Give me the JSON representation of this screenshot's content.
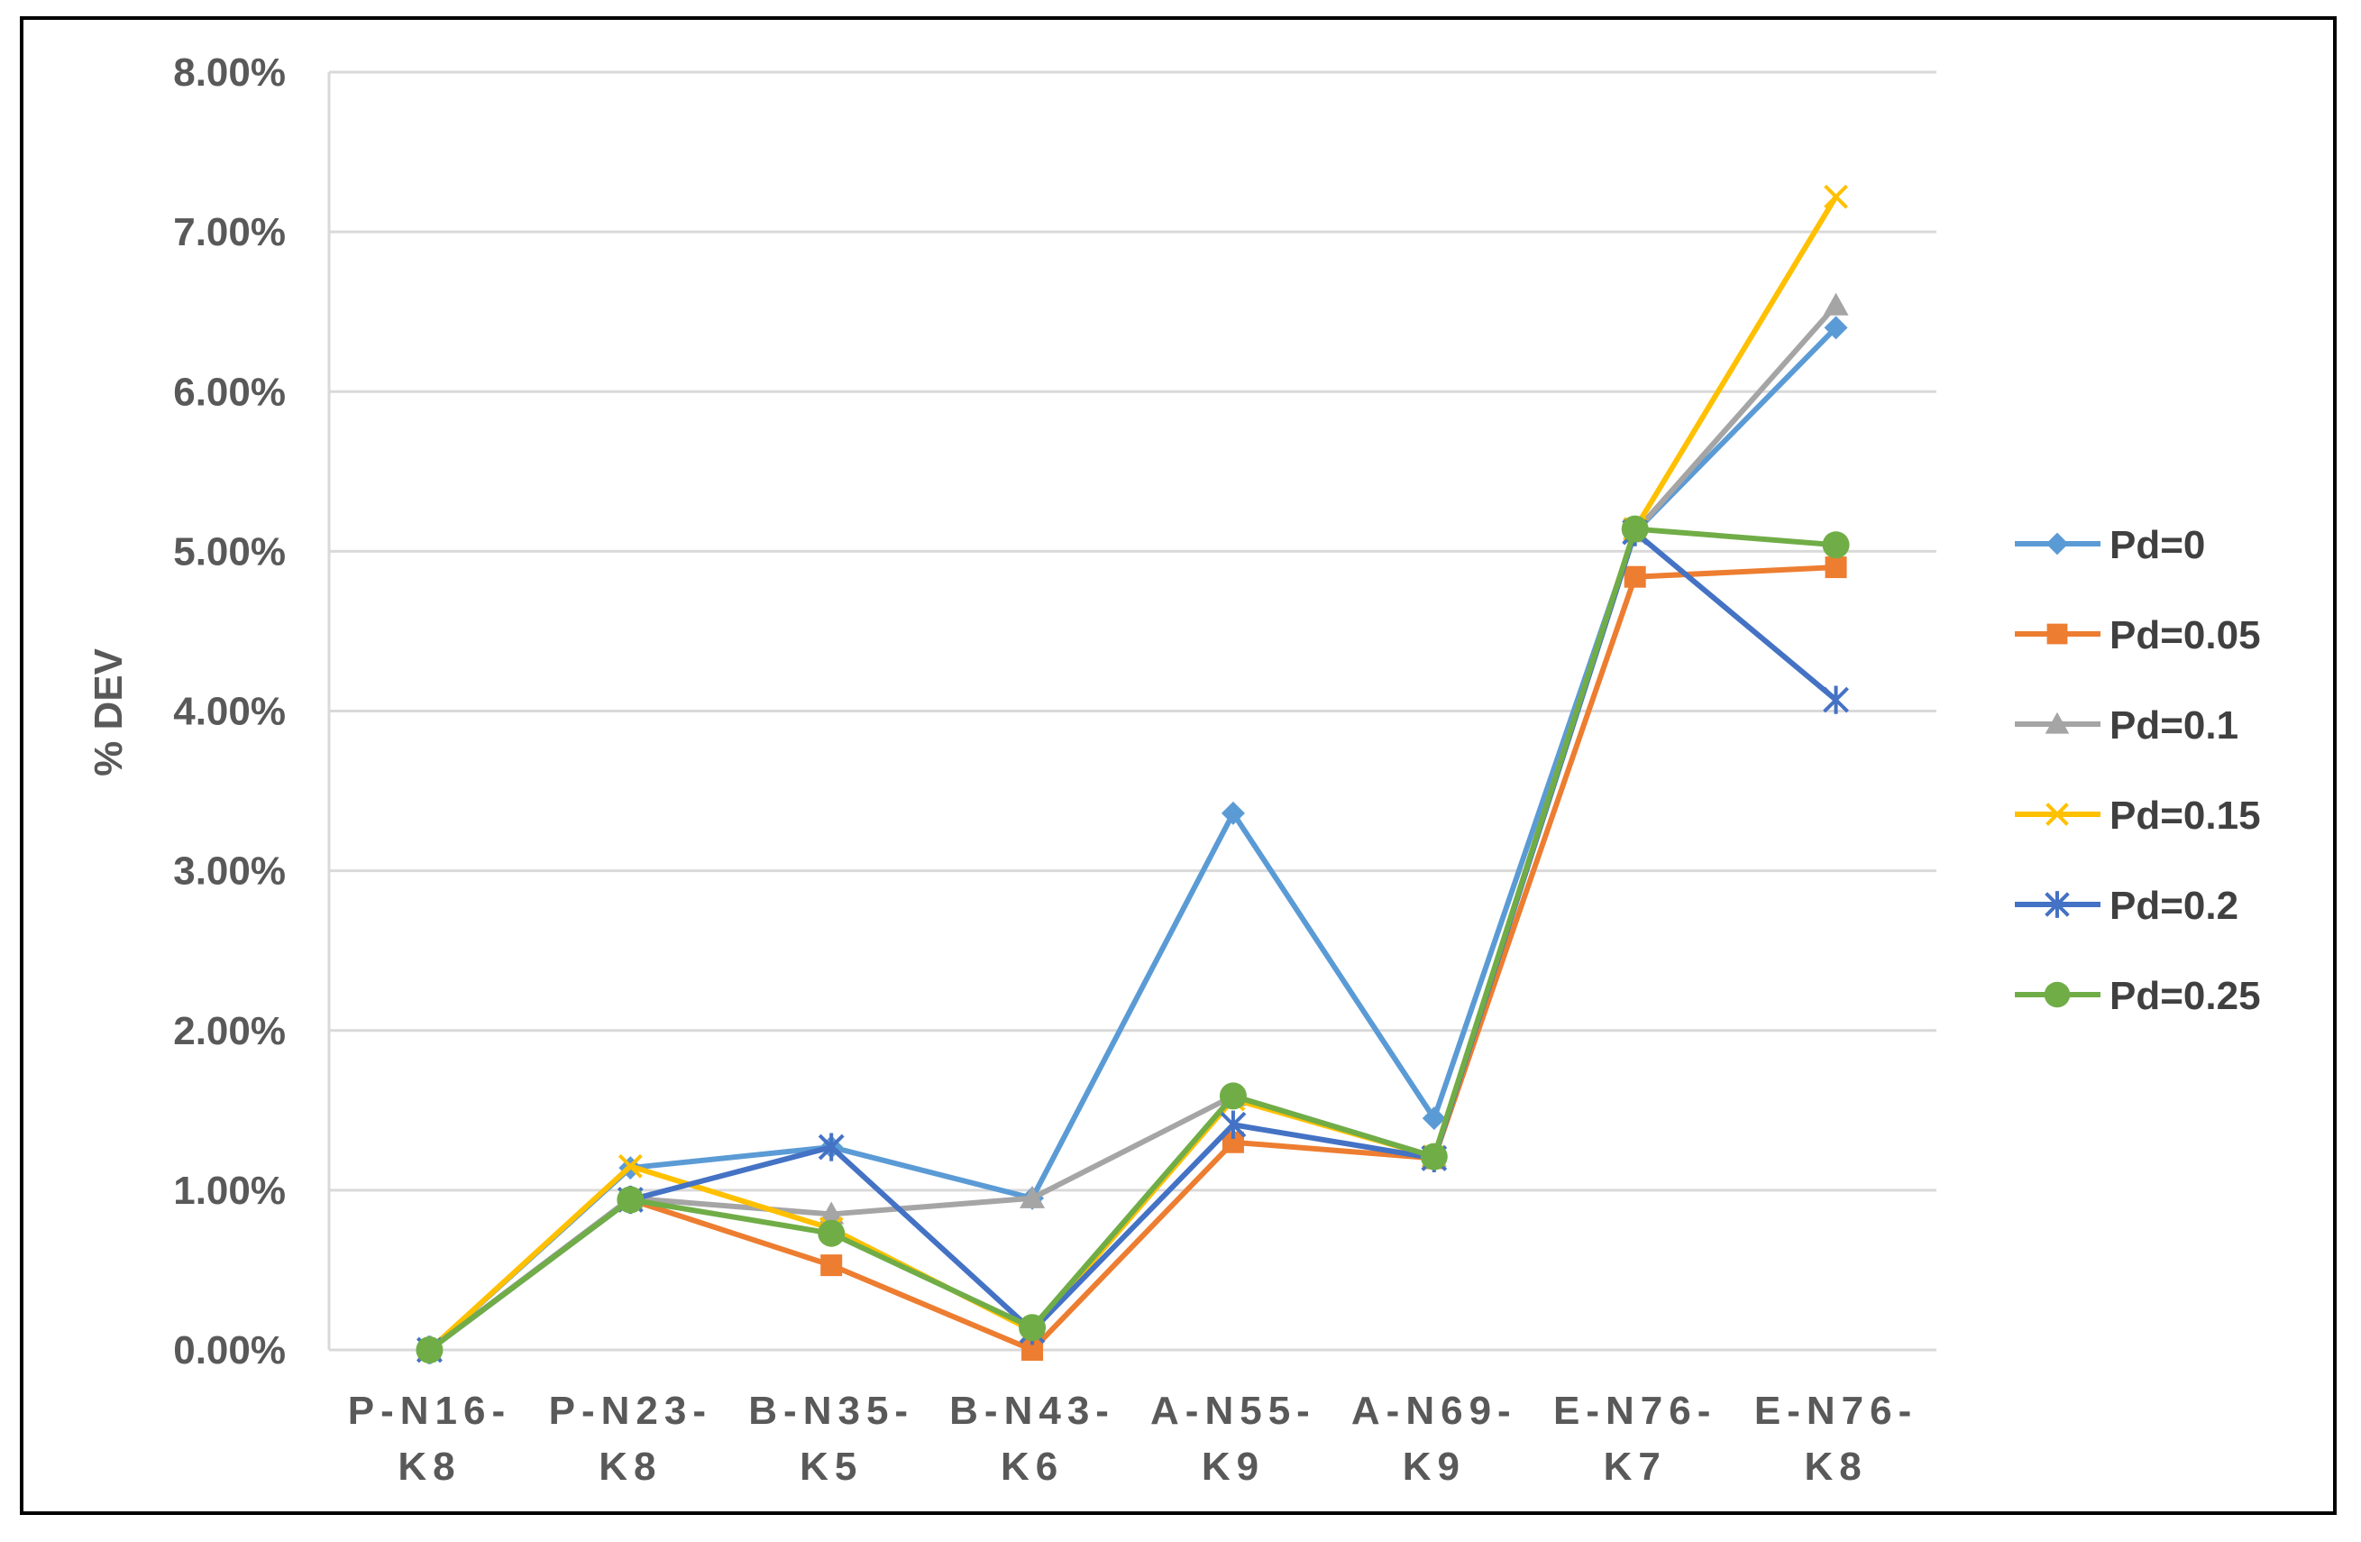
{
  "chart_data": {
    "type": "line",
    "title": "",
    "xlabel": "",
    "ylabel": "% DEV",
    "ylim": [
      0,
      0.08
    ],
    "ytick_step": 0.01,
    "y_tick_labels": [
      "0.00%",
      "1.00%",
      "2.00%",
      "3.00%",
      "4.00%",
      "5.00%",
      "6.00%",
      "7.00%",
      "8.00%"
    ],
    "grid": true,
    "legend": "right",
    "categories": [
      [
        "P-N16-",
        "K8"
      ],
      [
        "P-N23-",
        "K8"
      ],
      [
        "B-N35-",
        "K5"
      ],
      [
        "B-N43-",
        "K6"
      ],
      [
        "A-N55-",
        "K9"
      ],
      [
        "A-N69-",
        "K9"
      ],
      [
        "E-N76-",
        "K7"
      ],
      [
        "E-N76-",
        "K8"
      ]
    ],
    "series": [
      {
        "name": "Pd=0",
        "color": "#5B9BD5",
        "marker": "diamond",
        "values": [
          0.0,
          0.0114,
          0.0127,
          0.0095,
          0.0336,
          0.0145,
          0.0512,
          0.064
        ]
      },
      {
        "name": "Pd=0.05",
        "color": "#ED7D31",
        "marker": "square",
        "values": [
          0.0,
          0.0094,
          0.0053,
          0.0,
          0.013,
          0.012,
          0.0484,
          0.049
        ]
      },
      {
        "name": "Pd=0.1",
        "color": "#A5A5A5",
        "marker": "triangle",
        "values": [
          0.0,
          0.0095,
          0.0085,
          0.0095,
          0.0159,
          0.0121,
          0.0512,
          0.0654
        ]
      },
      {
        "name": "Pd=0.15",
        "color": "#FFC000",
        "marker": "x",
        "values": [
          0.0,
          0.0115,
          0.0076,
          0.0012,
          0.0157,
          0.0121,
          0.0514,
          0.0722
        ]
      },
      {
        "name": "Pd=0.2",
        "color": "#4472C4",
        "marker": "star",
        "values": [
          0.0,
          0.0094,
          0.0127,
          0.0012,
          0.0141,
          0.012,
          0.0512,
          0.0407
        ]
      },
      {
        "name": "Pd=0.25",
        "color": "#70AD47",
        "marker": "circle",
        "values": [
          0.0,
          0.0094,
          0.0073,
          0.0014,
          0.0159,
          0.0121,
          0.0514,
          0.0504
        ]
      }
    ]
  }
}
